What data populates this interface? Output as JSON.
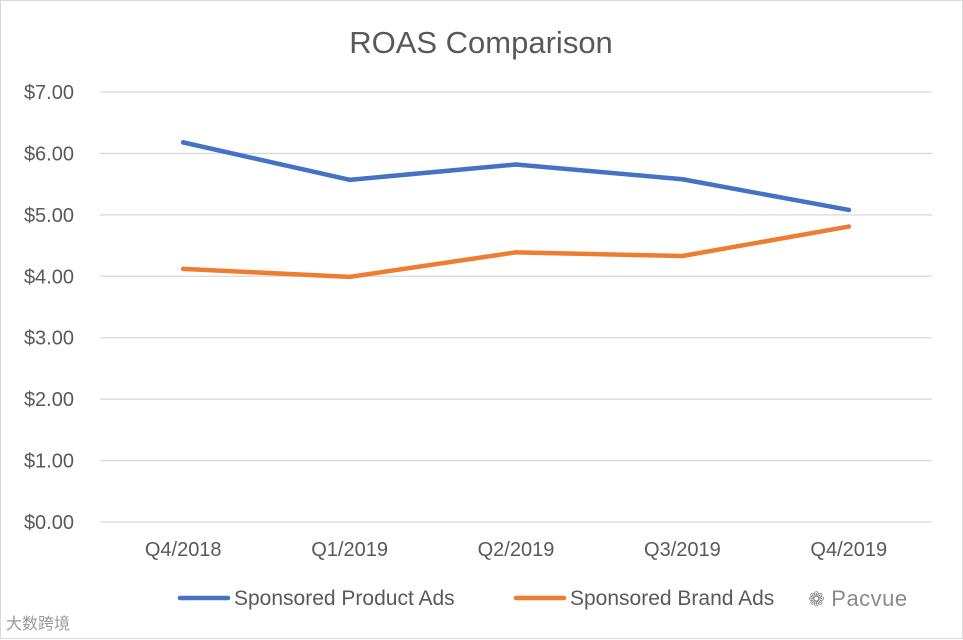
{
  "chart_data": {
    "type": "line",
    "title": "ROAS Comparison",
    "xlabel": "",
    "ylabel": "",
    "categories": [
      "Q4/2018",
      "Q1/2019",
      "Q2/2019",
      "Q3/2019",
      "Q4/2019"
    ],
    "y_ticks": [
      "$0.00",
      "$1.00",
      "$2.00",
      "$3.00",
      "$4.00",
      "$5.00",
      "$6.00",
      "$7.00"
    ],
    "ylim": [
      0,
      7
    ],
    "grid": true,
    "legend_position": "bottom",
    "series": [
      {
        "name": "Sponsored Product Ads",
        "color": "#4472c4",
        "values": [
          6.18,
          5.57,
          5.82,
          5.58,
          5.08
        ]
      },
      {
        "name": "Sponsored Brand Ads",
        "color": "#ed7d31",
        "values": [
          4.12,
          3.99,
          4.39,
          4.33,
          4.81
        ]
      }
    ]
  },
  "watermarks": {
    "left": "大数跨境",
    "right": "Pacvue",
    "right_icon": "wechat-icon"
  }
}
